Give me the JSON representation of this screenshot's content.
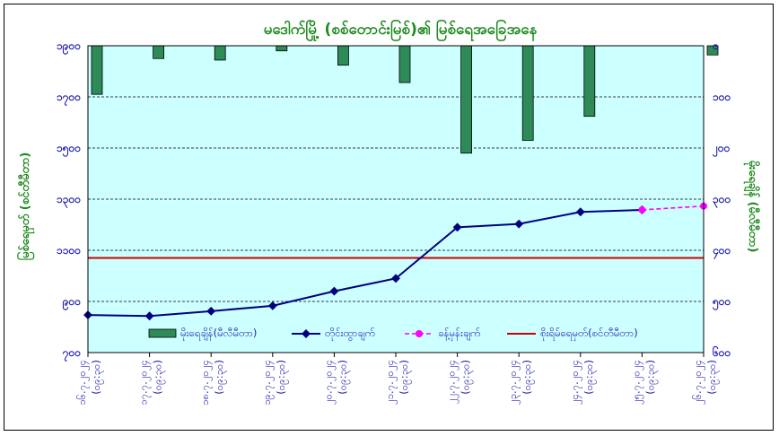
{
  "chart_data": {
    "type": "bar+line",
    "title": "မဒေါက်မြို့ (စစ်တောင်းမြစ်)၏ မြစ်ရေအခြေအနေ",
    "ylabel_left": "မြစ်ရေမှတ် (စင်တီမီတာ)",
    "ylabel_right": "မိုးရေချိန် (မီလီမီတာ)",
    "categories": [
      "၁၆.၇.၂၀၂၄ (၀၉:၃၀)",
      "၁၇.၇.၂၀၂၄ (၀၉:၃၀)",
      "၁၈.၇.၂၀၂၄ (၀၉:၃၀)",
      "၁၉.၇.၂၀၂၄ (၀၉:၃၀)",
      "၂၀.၇.၂၀၂၄ (၀၉:၃၀)",
      "၂၁.၇.၂၀၂၄ (၀၉:၃၀)",
      "၂၂.၇.၂၀၂၄ (၀၉:၃၀)",
      "၂၃.၇.၂၀၂၄ (၀၉:၃၀)",
      "၂၄.၇.၂၀၂၄ (၀၉:၃၀)",
      "၂၅.၇.၂၀၂၄ (၀၉:၃၀)",
      "၂၆.၇.၂၀၂၄ (၀၉:၃၀)"
    ],
    "left_axis": {
      "min": 700,
      "max": 1900,
      "step": 200,
      "tick_labels": [
        "၁၉၀၀",
        "၁၇၀၀",
        "၁၅၀၀",
        "၁၃၀၀",
        "၁၁၀၀",
        "၉၀၀",
        "၇၀၀"
      ]
    },
    "right_axis": {
      "min": 0,
      "max": 600,
      "step": 100,
      "inverted": true,
      "tick_labels": [
        "၀",
        "၁၀၀",
        "၂၀၀",
        "၃၀၀",
        "၄၀၀",
        "၅၀၀",
        "၆၀၀"
      ]
    },
    "series": [
      {
        "name": "မိုးရေချိန်(မီလီမီတာ)",
        "type": "bar",
        "axis": "right",
        "color": "#2e8b57",
        "values": [
          95,
          25,
          28,
          10,
          38,
          72,
          210,
          185,
          138,
          0,
          18
        ]
      },
      {
        "name": "တိုင်းထွာချက်",
        "type": "line",
        "axis": "left",
        "color": "#000080",
        "values": [
          847,
          843,
          862,
          883,
          940,
          990,
          1190,
          1203,
          1250,
          1258,
          null
        ]
      },
      {
        "name": "ခန့်မှန်းချက်",
        "type": "line-dashed",
        "axis": "left",
        "color": "#ff00ff",
        "values": [
          null,
          null,
          null,
          null,
          null,
          null,
          null,
          null,
          null,
          1258,
          1273
        ]
      },
      {
        "name": "စိုးရိမ်ရေမှတ်(စင်တီမီတာ)",
        "type": "hline",
        "axis": "left",
        "color": "#cc0000",
        "value": 1070
      }
    ],
    "grid": true,
    "legend_position": "bottom-inside",
    "plot_background": "#ccffff"
  }
}
